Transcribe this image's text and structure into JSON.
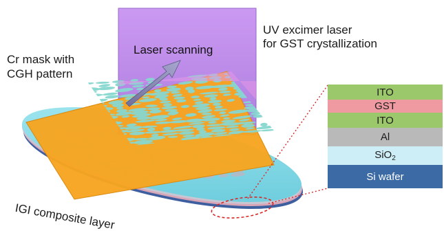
{
  "labels": {
    "laser_line1": "UV excimer laser",
    "laser_line2": "for GST crystallization",
    "mask_line1": "Cr mask with",
    "mask_line2": "CGH pattern",
    "scanning": "Laser scanning",
    "igi": "IGI composite layer"
  },
  "stack": {
    "layers": [
      {
        "label": "ITO",
        "color": "#9bc86a"
      },
      {
        "label": "GST",
        "color": "#ee9aa0"
      },
      {
        "label": "ITO",
        "color": "#9bc86a"
      },
      {
        "label": "Al",
        "color": "#b9b9b9"
      },
      {
        "label": "SiO",
        "subscript": "2",
        "color": "#cdeef6"
      },
      {
        "label": "Si wafer",
        "color": "#3b6aa4",
        "text_color": "#ffffff"
      }
    ]
  },
  "colors": {
    "laser_sheet": "#b77fe6",
    "mask": "#f7a41f",
    "pattern": "#86d7d0",
    "wafer": "#82dbe8",
    "callout": "#d62828"
  }
}
